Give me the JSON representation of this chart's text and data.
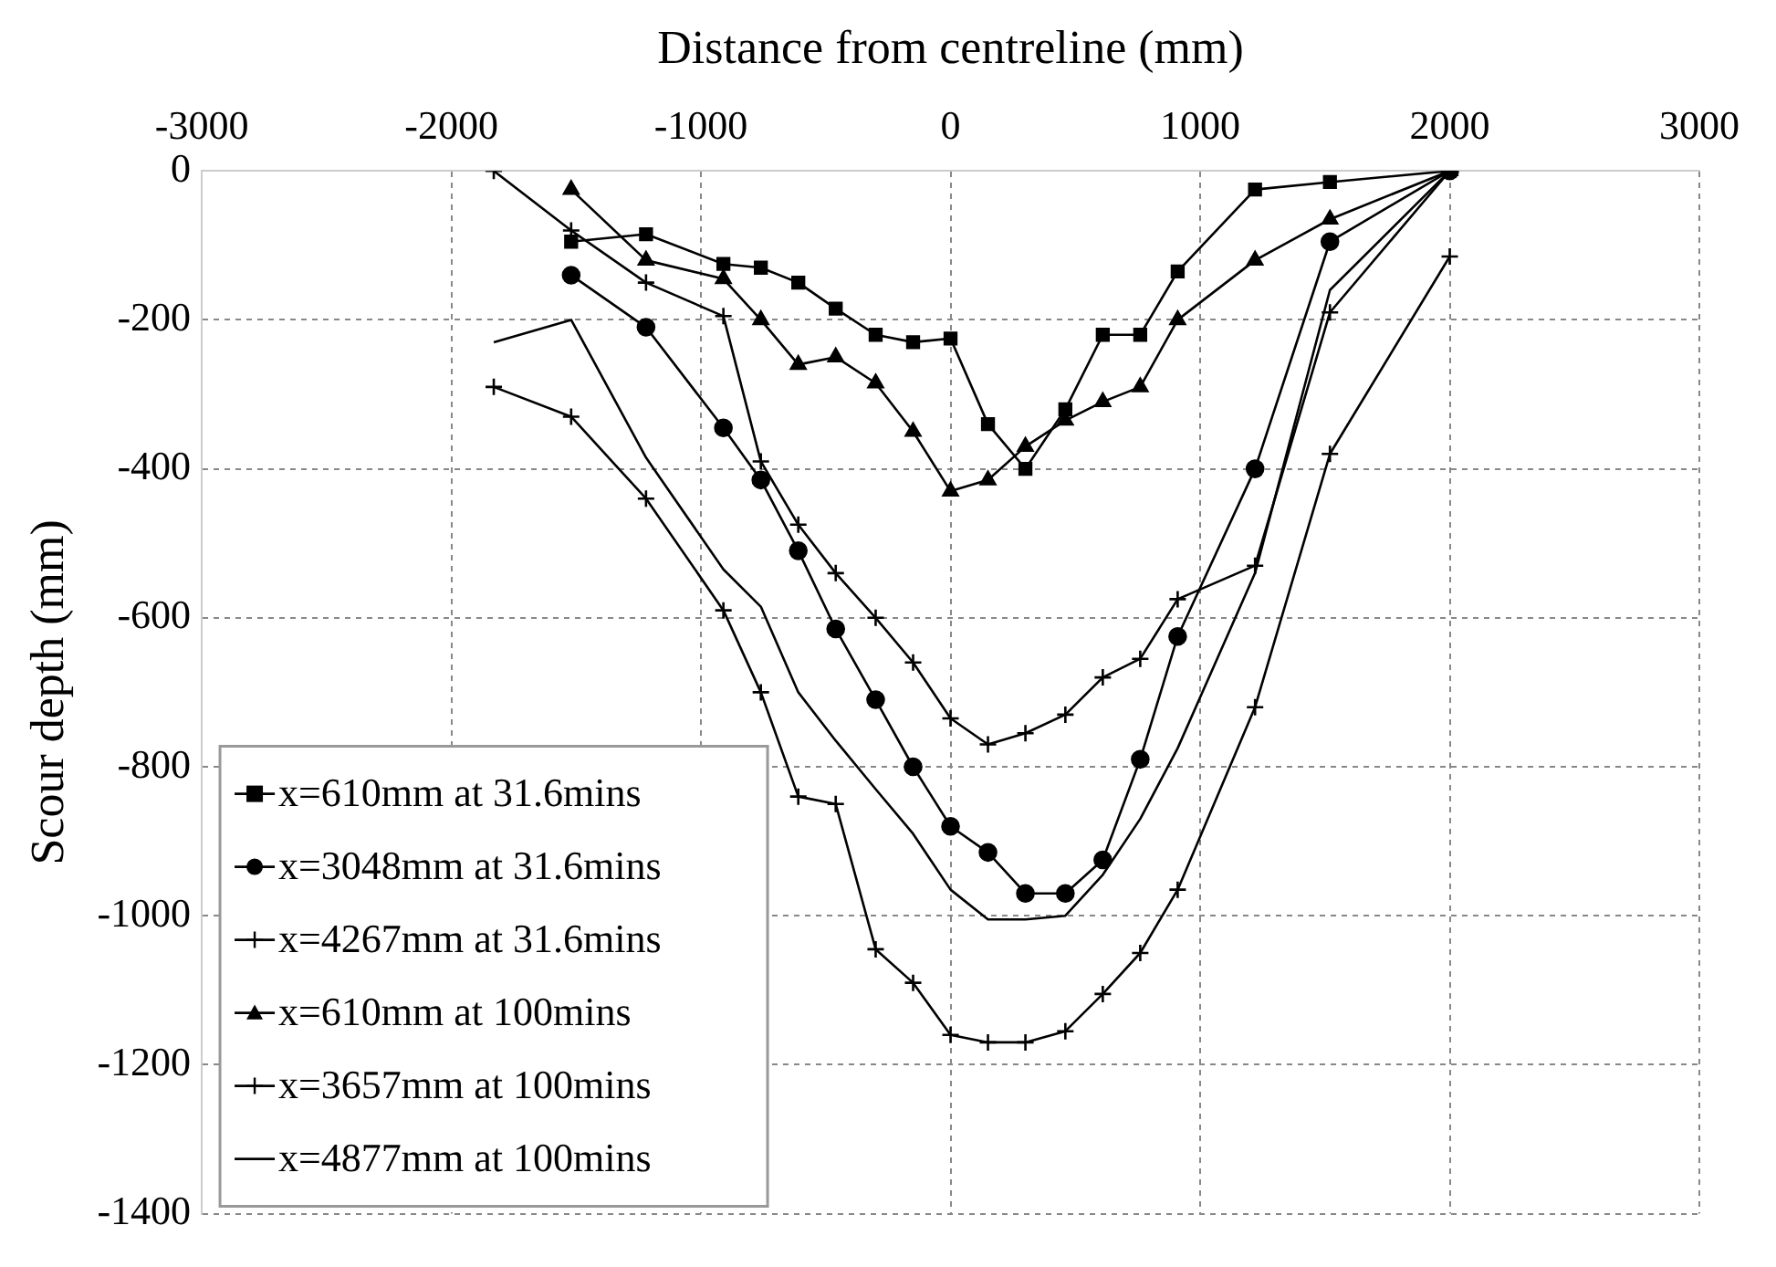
{
  "chart_data": {
    "type": "line",
    "xlabel": "Distance from centreline (mm)",
    "ylabel": "Scour depth (mm)",
    "xlim": [
      -3000,
      3000
    ],
    "xticks": [
      -3000,
      -2000,
      -1000,
      0,
      1000,
      2000,
      3000
    ],
    "ylim": [
      -1400,
      0
    ],
    "yticks": [
      -1400,
      -1200,
      -1000,
      -800,
      -600,
      -400,
      -200,
      0
    ],
    "grid": true,
    "legend": "bottom left",
    "line_style": "solid",
    "series": [
      {
        "name": "x=610mm at 31.6mins",
        "color": "#000000",
        "marker": "square",
        "x": [
          -1520,
          -1220,
          -910,
          -760,
          -610,
          -460,
          -300,
          -150,
          0,
          150,
          300,
          460,
          610,
          760,
          910,
          1220,
          1520,
          2000
        ],
        "values": [
          -95,
          -85,
          -125,
          -130,
          -150,
          -185,
          -220,
          -230,
          -225,
          -340,
          -400,
          -320,
          -220,
          -220,
          -135,
          -25,
          -15,
          0
        ]
      },
      {
        "name": "x=3048mm at 31.6mins",
        "color": "#000000",
        "marker": "circle",
        "x": [
          -1520,
          -1220,
          -910,
          -760,
          -610,
          -460,
          -300,
          -150,
          0,
          150,
          300,
          460,
          610,
          760,
          910,
          1220,
          1520,
          2000
        ],
        "values": [
          -140,
          -210,
          -345,
          -415,
          -510,
          -615,
          -710,
          -800,
          -880,
          -915,
          -970,
          -970,
          -925,
          -790,
          -625,
          -400,
          -95,
          0
        ]
      },
      {
        "name": "x=4267mm at 31.6mins",
        "color": "#000000",
        "marker": "cross",
        "x": [
          -1830,
          -1520,
          -1220,
          -910,
          -760,
          -610,
          -460,
          -300,
          -150,
          0,
          150,
          300,
          460,
          610,
          760,
          910,
          1220,
          1520,
          2000
        ],
        "values": [
          0,
          -80,
          -150,
          -195,
          -390,
          -475,
          -540,
          -600,
          -660,
          -735,
          -770,
          -755,
          -730,
          -680,
          -655,
          -575,
          -530,
          -190,
          0
        ]
      },
      {
        "name": "x=610mm at 100mins",
        "color": "#000000",
        "marker": "triangle",
        "x": [
          -1520,
          -1220,
          -910,
          -760,
          -610,
          -460,
          -300,
          -150,
          0,
          150,
          300,
          460,
          610,
          760,
          910,
          1220,
          1520,
          2000
        ],
        "values": [
          -25,
          -120,
          -145,
          -200,
          -260,
          -250,
          -285,
          -350,
          -430,
          -415,
          -370,
          -335,
          -310,
          -290,
          -200,
          -120,
          -65,
          0
        ]
      },
      {
        "name": "x=3657mm at 100mins",
        "color": "#000000",
        "marker": "cross",
        "x": [
          -1830,
          -1520,
          -1220,
          -910,
          -760,
          -610,
          -460,
          -300,
          -150,
          0,
          150,
          300,
          460,
          610,
          760,
          910,
          1220,
          1520,
          2000
        ],
        "values": [
          -290,
          -330,
          -440,
          -590,
          -700,
          -840,
          -850,
          -1045,
          -1090,
          -1160,
          -1170,
          -1170,
          -1155,
          -1105,
          -1050,
          -965,
          -720,
          -380,
          -115
        ]
      },
      {
        "name": "x=4877mm at 100mins",
        "color": "#000000",
        "marker": "none",
        "x": [
          -1830,
          -1520,
          -1220,
          -910,
          -760,
          -610,
          -460,
          -300,
          -150,
          0,
          150,
          300,
          460,
          610,
          760,
          910,
          1220,
          1520,
          2000
        ],
        "values": [
          -230,
          -200,
          -385,
          -535,
          -585,
          -700,
          -765,
          -830,
          -890,
          -965,
          -1005,
          -1005,
          -1000,
          -945,
          -870,
          -775,
          -540,
          -160,
          0
        ]
      }
    ]
  }
}
